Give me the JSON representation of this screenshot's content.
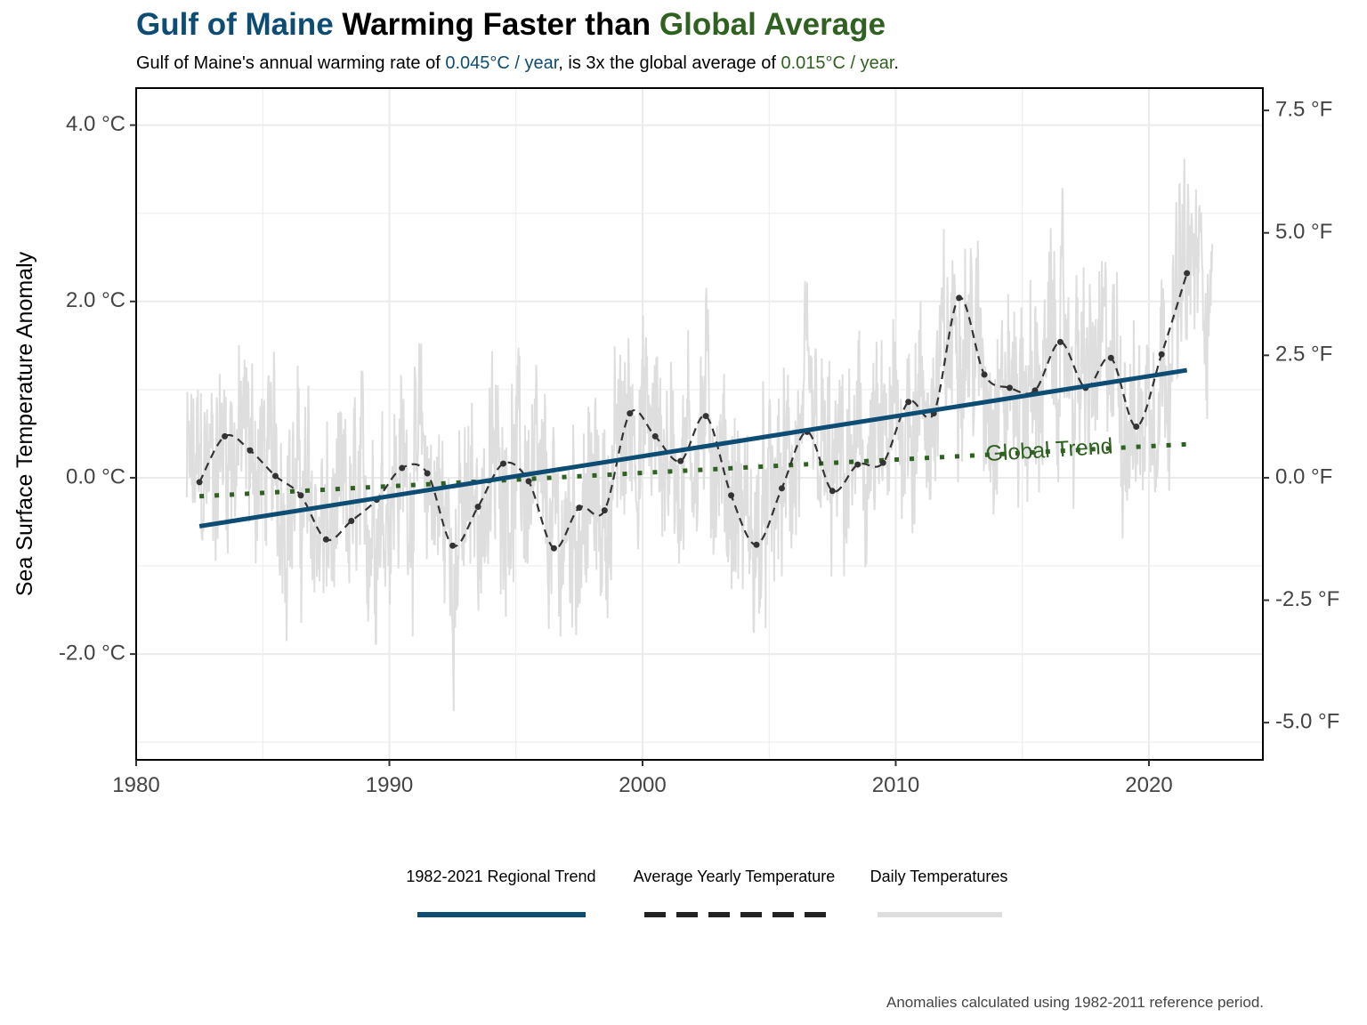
{
  "header": {
    "title_part1": "Gulf of Maine",
    "title_part2": " Warming Faster than ",
    "title_part3": "Global Average",
    "subtitle_part1": "Gulf of Maine's annual warming rate of ",
    "subtitle_rate_gom": "0.045°C / year",
    "subtitle_part2": ", is 3x the global average of ",
    "subtitle_rate_global": "0.015°C / year",
    "subtitle_part3": "."
  },
  "caption": "Anomalies calculated using 1982-2011 reference period.",
  "colors": {
    "regional_trend": "#0d4c73",
    "global_trend": "#2f6121",
    "yearly_avg": "#333333",
    "daily": "#dedede",
    "grid": "#ebebeb"
  },
  "chart_data": {
    "type": "line",
    "title": "Gulf of Maine Warming Faster than Global Average",
    "ylabel": "Sea Surface Temperature Anomaly",
    "xlim": [
      1980,
      2024.5
    ],
    "ylim": [
      -3.2,
      4.42
    ],
    "x_ticks": [
      1980,
      1990,
      2000,
      2010,
      2020
    ],
    "x_tick_labels": [
      "1980",
      "1990",
      "2000",
      "2010",
      "2020"
    ],
    "y_ticks": [
      -2,
      0,
      2,
      4
    ],
    "y_tick_labels": [
      "-2.0 °C",
      "0.0 °C",
      "2.0 °C",
      "4.0 °C"
    ],
    "y2_ticks": [
      -5,
      -2.5,
      0,
      2.5,
      5,
      7.5
    ],
    "y2_tick_labels": [
      "-5.0 °F",
      "-2.5 °F",
      "0.0 °F",
      "2.5 °F",
      "5.0 °F",
      "7.5 °F"
    ],
    "grid": true,
    "legend_position": "bottom",
    "legend": [
      {
        "label": "1982-2021 Regional Trend",
        "style": "solid"
      },
      {
        "label": "Average Yearly Temperature",
        "style": "dashed"
      },
      {
        "label": "Daily Temperatures",
        "style": "solid-light"
      }
    ],
    "annotations": [
      {
        "text": "Global Trend",
        "x": 2018,
        "y": 0.3
      }
    ],
    "series": [
      {
        "name": "Average Yearly Temperature",
        "x": [
          1982.5,
          1983.5,
          1984.5,
          1985.5,
          1986.5,
          1987.5,
          1988.5,
          1989.5,
          1990.5,
          1991.5,
          1992.5,
          1993.5,
          1994.5,
          1995.5,
          1996.5,
          1997.5,
          1998.5,
          1999.5,
          2000.5,
          2001.5,
          2002.5,
          2003.5,
          2004.5,
          2005.5,
          2006.5,
          2007.5,
          2008.5,
          2009.5,
          2010.5,
          2011.5,
          2012.5,
          2013.5,
          2014.5,
          2015.5,
          2016.5,
          2017.5,
          2018.5,
          2019.5,
          2020.5,
          2021.5
        ],
        "y": [
          -0.05,
          0.47,
          0.31,
          0.02,
          -0.2,
          -0.7,
          -0.49,
          -0.25,
          0.11,
          0.05,
          -0.77,
          -0.33,
          0.16,
          -0.04,
          -0.8,
          -0.34,
          -0.37,
          0.73,
          0.47,
          0.19,
          0.7,
          -0.2,
          -0.76,
          -0.12,
          0.52,
          -0.15,
          0.15,
          0.17,
          0.86,
          0.73,
          2.04,
          1.17,
          1.02,
          0.99,
          1.54,
          1.02,
          1.36,
          0.58,
          1.4,
          2.32
        ]
      },
      {
        "name": "1982-2021 Regional Trend",
        "x": [
          1982.5,
          2021.5
        ],
        "y": [
          -0.55,
          1.22
        ]
      },
      {
        "name": "Global Trend",
        "x": [
          1982.5,
          2021.5
        ],
        "y": [
          -0.21,
          0.38
        ]
      },
      {
        "name": "Daily Temperatures",
        "x_range": [
          1982.0,
          2022.5
        ],
        "note_values": "daily anomalies oscillating around yearly averages with ±1°C spread"
      }
    ]
  }
}
